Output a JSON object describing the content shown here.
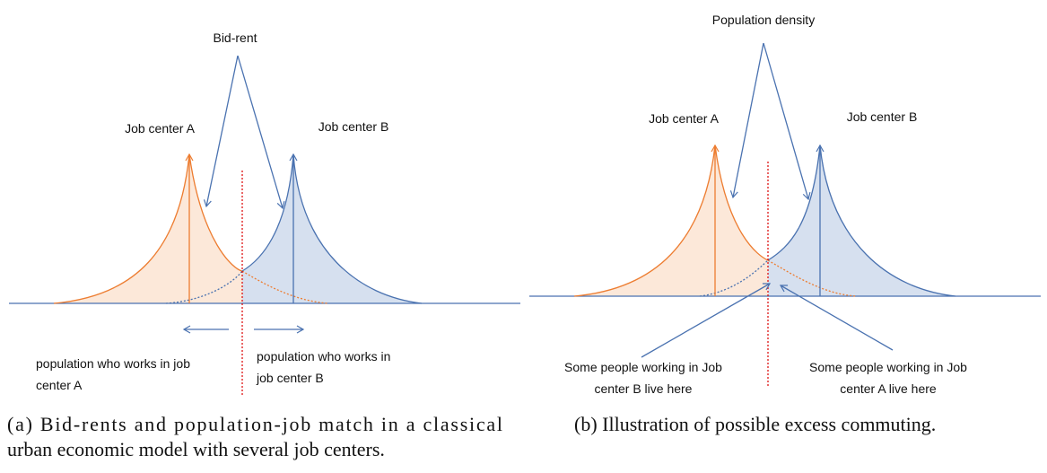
{
  "panel_a": {
    "curve_label": "Bid-rent",
    "center_a": "Job center A",
    "center_b": "Job center B",
    "note_a": [
      "population who works in job",
      "center A"
    ],
    "note_b": [
      "population who works in",
      "job center B"
    ],
    "caption": [
      "(a) Bid-rents and population-job match in a classical",
      "urban economic model with several job centers."
    ]
  },
  "panel_b": {
    "curve_label": "Population density",
    "center_a": "Job center A",
    "center_b": "Job center B",
    "note_a": [
      "Some people working in Job",
      "center B live here"
    ],
    "note_b": [
      "Some people working in Job",
      "center A live here"
    ],
    "caption": [
      "(b) Illustration of possible excess commuting."
    ]
  }
}
